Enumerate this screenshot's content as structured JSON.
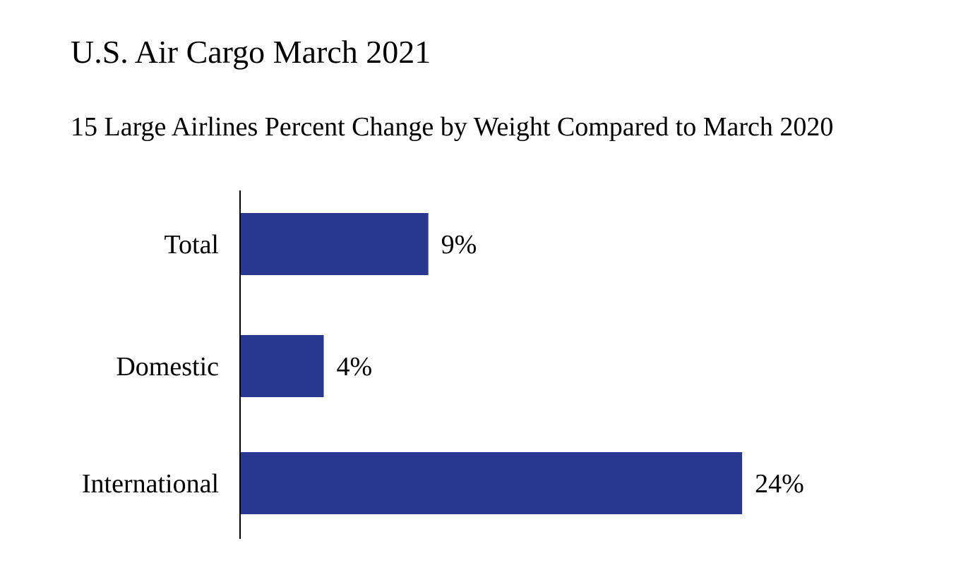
{
  "chart_data": {
    "type": "bar",
    "orientation": "horizontal",
    "title": "U.S. Air Cargo March 2021",
    "subtitle": "15 Large Airlines Percent Change by Weight Compared to March 2020",
    "categories": [
      "Total",
      "Domestic",
      "International"
    ],
    "values": [
      9,
      4,
      24
    ],
    "value_labels": [
      "9%",
      "4%",
      "24%"
    ],
    "unit": "%",
    "xlim": [
      0,
      24
    ],
    "grid": false,
    "legend": "none",
    "bar_color": "#283891"
  }
}
